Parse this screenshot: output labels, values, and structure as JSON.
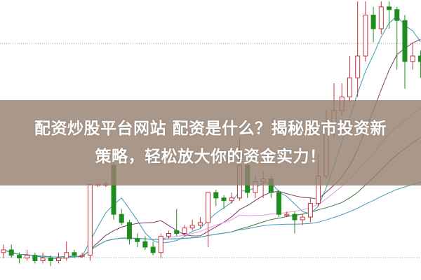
{
  "headline": {
    "line1": "配资炒股平台网站 配资是什么？揭秘股市投资新",
    "line2": "策略，轻松放大你的资金实力！"
  },
  "chart_data": {
    "type": "candlestick",
    "title": "",
    "xlabel": "",
    "ylabel": "",
    "ylim": [
      0,
      100
    ],
    "grid": "dotted horizontal",
    "colors": {
      "up": "#c8323c",
      "down": "#1e8c1e",
      "ma5": "#3c9cb4",
      "ma10": "#7a3c6c",
      "ma20": "#e696e6",
      "ma30": "#3c783c",
      "ma60": "#3ca0b4"
    },
    "moving_averages": [
      5,
      10,
      20,
      30,
      60
    ],
    "candles": [
      [
        8,
        9,
        11,
        6
      ],
      [
        9,
        7,
        11,
        6
      ],
      [
        7,
        6,
        8,
        4
      ],
      [
        6,
        7,
        9,
        5
      ],
      [
        7,
        5,
        8,
        4
      ],
      [
        5,
        6,
        8,
        4
      ],
      [
        6,
        5,
        7,
        3
      ],
      [
        5,
        6,
        8,
        4
      ],
      [
        6,
        8,
        12,
        5
      ],
      [
        8,
        7,
        9,
        6
      ],
      [
        7,
        7,
        8,
        6
      ],
      [
        7,
        33,
        33,
        5
      ],
      [
        33,
        33,
        33,
        32
      ],
      [
        33,
        33,
        34,
        32
      ],
      [
        40,
        22,
        42,
        20
      ],
      [
        22,
        19,
        24,
        18
      ],
      [
        19,
        13,
        20,
        11
      ],
      [
        13,
        12,
        15,
        10
      ],
      [
        12,
        10,
        14,
        9
      ],
      [
        10,
        8,
        12,
        7
      ],
      [
        8,
        14,
        15,
        6
      ],
      [
        14,
        15,
        16,
        13
      ],
      [
        16,
        15,
        24,
        14
      ],
      [
        15,
        17,
        18,
        14
      ],
      [
        17,
        18,
        20,
        16
      ],
      [
        18,
        19,
        21,
        17
      ],
      [
        19,
        30,
        30,
        10
      ],
      [
        30,
        28,
        31,
        25
      ],
      [
        28,
        27,
        29,
        24
      ],
      [
        27,
        28,
        30,
        26
      ],
      [
        28,
        40,
        50,
        27
      ],
      [
        40,
        30,
        42,
        28
      ],
      [
        30,
        34,
        36,
        28
      ],
      [
        34,
        35,
        38,
        28
      ],
      [
        35,
        30,
        36,
        28
      ],
      [
        30,
        22,
        31,
        21
      ],
      [
        22,
        22,
        23,
        21
      ],
      [
        22,
        20,
        23,
        15
      ],
      [
        20,
        21,
        22,
        18
      ],
      [
        21,
        26,
        28,
        19
      ],
      [
        26,
        36,
        44,
        25
      ],
      [
        36,
        55,
        60,
        35
      ],
      [
        55,
        60,
        70,
        50
      ],
      [
        60,
        65,
        70,
        58
      ],
      [
        65,
        72,
        80,
        63
      ],
      [
        72,
        80,
        100,
        65
      ],
      [
        80,
        95,
        100,
        78
      ],
      [
        95,
        90,
        98,
        85
      ],
      [
        90,
        98,
        100,
        88
      ],
      [
        98,
        97,
        100,
        90
      ],
      [
        97,
        93,
        98,
        75
      ],
      [
        93,
        78,
        95,
        68
      ],
      [
        78,
        80,
        85,
        75
      ],
      [
        80,
        78,
        82,
        72
      ]
    ]
  }
}
